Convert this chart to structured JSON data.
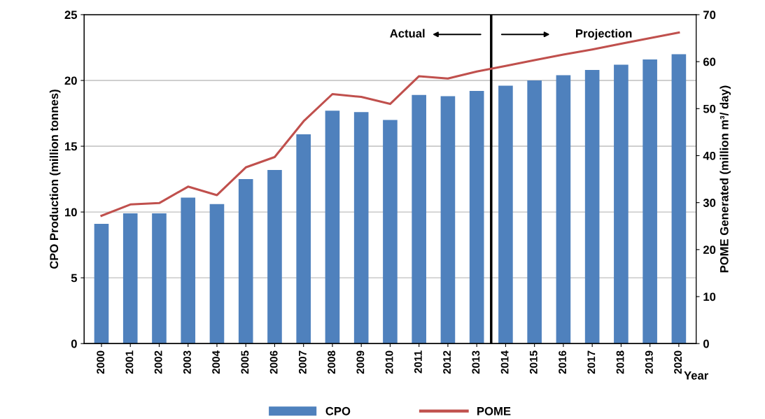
{
  "chart_data": {
    "type": "bar",
    "xlabel": "Year",
    "ylabel": "CPO Production (million tonnes)",
    "y2label": "POME Generated (million m³/ day)",
    "categories": [
      "2000",
      "2001",
      "2002",
      "2003",
      "2004",
      "2005",
      "2006",
      "2007",
      "2008",
      "2009",
      "2010",
      "2011",
      "2012",
      "2013",
      "2014",
      "2015",
      "2016",
      "2017",
      "2018",
      "2019",
      "2020"
    ],
    "series": [
      {
        "name": "CPO",
        "color": "#4f81bd",
        "values": [
          9.1,
          9.9,
          9.9,
          11.1,
          10.6,
          12.5,
          13.2,
          15.9,
          17.7,
          17.6,
          17.0,
          18.9,
          18.8,
          19.2,
          19.6,
          20.0,
          20.4,
          20.8,
          21.2,
          21.6,
          22.0
        ]
      },
      {
        "name": "POME",
        "type": "line",
        "axis": "y2",
        "color": "#c0504d",
        "values": [
          27.2,
          29.6,
          29.9,
          33.4,
          31.6,
          37.5,
          39.7,
          47.3,
          53.1,
          52.5,
          51.0,
          56.9,
          56.4,
          57.9,
          59.1,
          60.3,
          61.5,
          62.6,
          63.8,
          65.0,
          66.2
        ]
      }
    ],
    "ylim": [
      0,
      25
    ],
    "yticks": [
      0,
      5,
      10,
      15,
      20,
      25
    ],
    "y2lim": [
      0,
      70
    ],
    "y2ticks": [
      0,
      10,
      20,
      30,
      40,
      50,
      60,
      70
    ],
    "ref_lines": [
      {
        "axis": "x",
        "value": "2013",
        "color": "#000000"
      }
    ],
    "annotations": [
      "Actual",
      "Projection"
    ],
    "grid": "y",
    "legend": "bottom",
    "marker": "none",
    "line_style": "solid"
  }
}
